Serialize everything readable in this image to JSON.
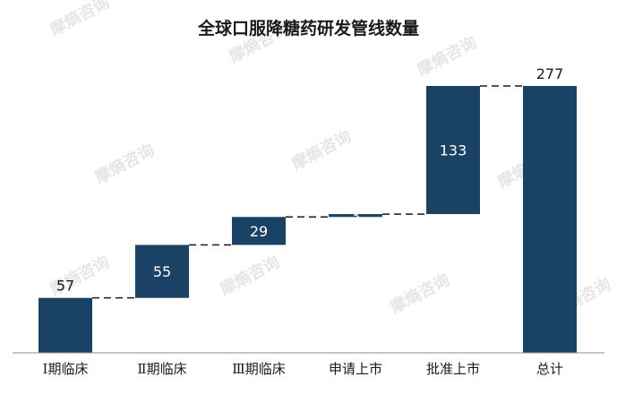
{
  "chart_data": {
    "type": "bar",
    "subtype": "waterfall",
    "title": "全球口服降糖药研发管线数量",
    "categories": [
      "Ⅰ期临床",
      "Ⅱ期临床",
      "Ⅲ期临床",
      "申请上市",
      "批准上市",
      "总计"
    ],
    "values": [
      57,
      55,
      29,
      3,
      133,
      277
    ],
    "total_index": 5,
    "ylim": [
      0,
      277
    ],
    "grid": false,
    "legend": "none",
    "bar_color": "#1a4265",
    "connector_style": "dashed"
  },
  "watermark": {
    "text": "摩熵咨询"
  }
}
